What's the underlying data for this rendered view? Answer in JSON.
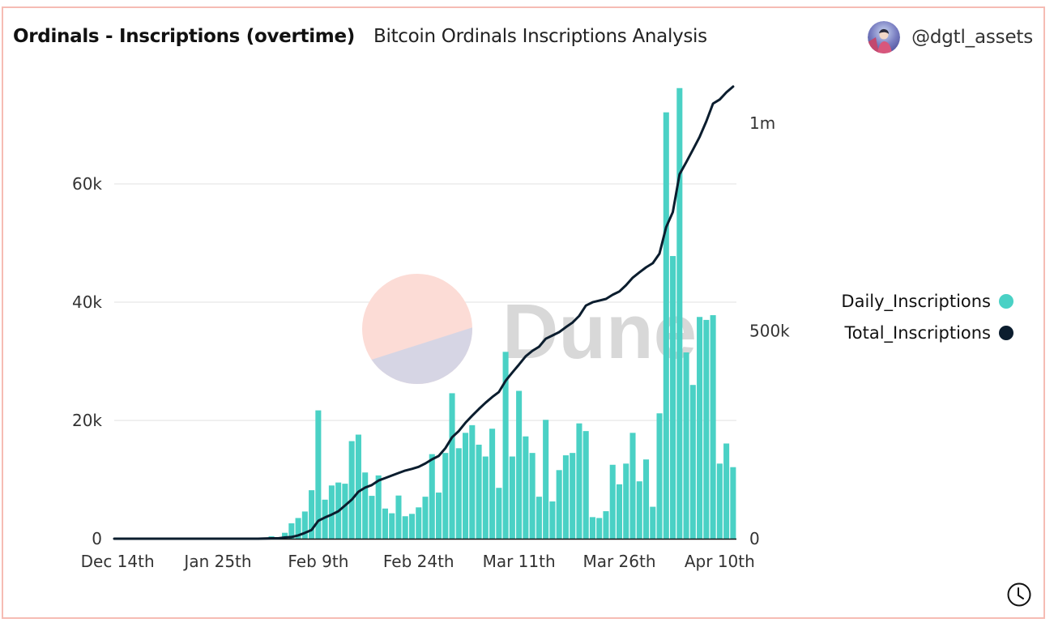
{
  "header": {
    "title": "Ordinals - Inscriptions (overtime)",
    "subtitle": "Bitcoin Ordinals Inscriptions Analysis",
    "author": "@dgtl_assets"
  },
  "watermark": "Dune",
  "icons": {
    "avatar": "user-avatar",
    "clock": "clock-icon"
  },
  "colors": {
    "daily": "#4ad1c5",
    "total": "#0b1d2e",
    "grid": "#ececec",
    "border": "#f6bcb4"
  },
  "chart_data": {
    "type": "bar",
    "title": "Ordinals - Inscriptions (overtime)",
    "xlabel": "",
    "ylabel": "",
    "x_tick_labels": [
      {
        "index": 0,
        "label": "Dec 14th"
      },
      {
        "index": 15,
        "label": "Jan 25th"
      },
      {
        "index": 30,
        "label": "Feb 9th"
      },
      {
        "index": 45,
        "label": "Feb 24th"
      },
      {
        "index": 60,
        "label": "Mar 11th"
      },
      {
        "index": 75,
        "label": "Mar 26th"
      },
      {
        "index": 90,
        "label": "Apr 10th"
      }
    ],
    "n_categories": 93,
    "y_left": {
      "ticks": [
        0,
        20000,
        40000,
        60000
      ],
      "tick_labels": [
        "0",
        "20k",
        "40k",
        "60k"
      ],
      "range": [
        0,
        76500
      ]
    },
    "y_right": {
      "ticks": [
        0,
        500000,
        1000000
      ],
      "tick_labels": [
        "0",
        "500k",
        "1m"
      ],
      "range": [
        0,
        1140000
      ]
    },
    "grid": true,
    "legend_position": "right",
    "series": [
      {
        "name": "Daily_Inscriptions",
        "type": "bar",
        "axis": "left",
        "values": [
          0,
          0,
          0,
          0,
          0,
          0,
          0,
          0,
          0,
          0,
          0,
          0,
          0,
          0,
          0,
          0,
          0,
          0,
          0,
          0,
          0,
          0,
          0,
          400,
          100,
          1000,
          2600,
          3500,
          4600,
          8200,
          21700,
          6600,
          9000,
          9500,
          9300,
          16500,
          17600,
          11200,
          7250,
          10700,
          5100,
          4300,
          7300,
          3800,
          4200,
          5300,
          7100,
          14300,
          7800,
          14500,
          24600,
          15300,
          17900,
          19200,
          15900,
          13900,
          18600,
          8600,
          31600,
          13900,
          25000,
          17300,
          14500,
          7100,
          20100,
          6300,
          11600,
          14100,
          14500,
          19500,
          18200,
          3650,
          3500,
          4650,
          12500,
          9200,
          12700,
          17900,
          9700,
          13400,
          5400,
          21200,
          72100,
          47800,
          76200,
          31500,
          26000,
          37500,
          37000,
          37800,
          12700,
          16100,
          12100
        ]
      },
      {
        "name": "Total_Inscriptions",
        "type": "line",
        "axis": "right",
        "values": [
          0,
          0,
          0,
          0,
          0,
          0,
          0,
          0,
          0,
          0,
          0,
          0,
          0,
          0,
          0,
          0,
          0,
          0,
          0,
          0,
          0,
          0,
          500,
          1000,
          1000,
          3000,
          4000,
          8000,
          14000,
          21000,
          43000,
          51000,
          58000,
          66000,
          80000,
          94000,
          113000,
          123000,
          129000,
          140000,
          146000,
          152000,
          158000,
          164000,
          168000,
          173000,
          181000,
          191000,
          199000,
          218000,
          244000,
          259000,
          279000,
          296000,
          312000,
          327000,
          341000,
          353000,
          380000,
          400000,
          419000,
          439000,
          452000,
          462000,
          481000,
          489000,
          497000,
          509000,
          520000,
          536000,
          561000,
          569000,
          573000,
          577000,
          587000,
          595000,
          610000,
          628000,
          641000,
          653000,
          663000,
          686000,
          750000,
          786000,
          877000,
          906000,
          936000,
          967000,
          1004000,
          1047000,
          1057000,
          1074000,
          1088000
        ]
      }
    ]
  }
}
